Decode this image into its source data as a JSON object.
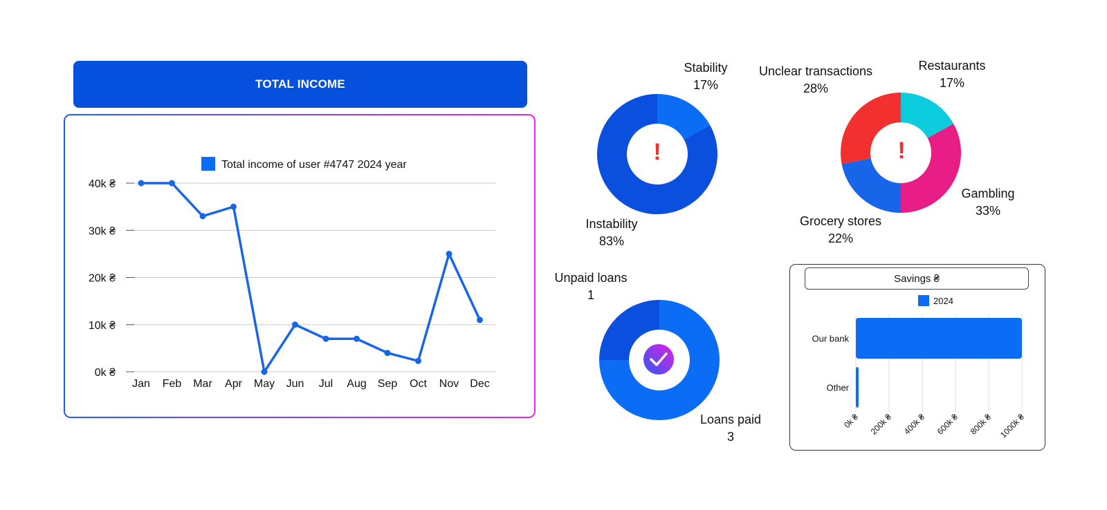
{
  "income": {
    "header": "TOTAL INCOME",
    "legend": "Total income of user #4747 2024 year"
  },
  "stability": {
    "stability_label": "Stability",
    "stability_pct": "17%",
    "instability_label": "Instability",
    "instability_pct": "83%",
    "center_icon": "!"
  },
  "spending": {
    "unclear_label": "Unclear transactions",
    "unclear_pct": "28%",
    "restaurants_label": "Restaurants",
    "restaurants_pct": "17%",
    "gambling_label": "Gambling",
    "gambling_pct": "33%",
    "grocery_label": "Grocery stores",
    "grocery_pct": "22%",
    "center_icon": "!"
  },
  "loans": {
    "unpaid_label": "Unpaid loans",
    "unpaid_value": "1",
    "paid_label": "Loans paid",
    "paid_value": "3"
  },
  "savings": {
    "title": "Savings ₴",
    "legend": "2024"
  },
  "colors": {
    "brand_blue": "#0550dc",
    "line_blue": "#1766ea",
    "bright_blue": "#0b6cf6",
    "dark_blue": "#0a4fde",
    "red": "#f2302f",
    "cyan": "#0ccbdc",
    "magenta": "#e81d86"
  },
  "chart_data": [
    {
      "type": "line",
      "categories": [
        "Jan",
        "Feb",
        "Mar",
        "Apr",
        "May",
        "Jun",
        "Jul",
        "Aug",
        "Sep",
        "Oct",
        "Nov",
        "Dec"
      ],
      "series": [
        {
          "name": "Total income of user #4747 2024 year",
          "values": [
            40,
            40,
            33,
            35,
            0,
            10,
            7,
            7,
            4,
            2.3,
            25,
            11
          ]
        }
      ],
      "y_ticks": [
        "0k ₴",
        "10k ₴",
        "20k ₴",
        "30k ₴",
        "40k ₴"
      ],
      "ylim": [
        0,
        40
      ],
      "grid": true,
      "legend_position": "top"
    },
    {
      "type": "pie",
      "labels": [
        "Stability",
        "Instability"
      ],
      "values": [
        17,
        83
      ],
      "colors": [
        "#0b6cf6",
        "#0a4fde"
      ]
    },
    {
      "type": "pie",
      "labels": [
        "Restaurants",
        "Gambling",
        "Grocery stores",
        "Unclear transactions"
      ],
      "values": [
        17,
        33,
        22,
        28
      ],
      "colors": [
        "#0ccbdc",
        "#e81d86",
        "#1766ea",
        "#f2302f"
      ]
    },
    {
      "type": "pie",
      "labels": [
        "Loans paid",
        "Unpaid loans"
      ],
      "values": [
        3,
        1
      ],
      "colors": [
        "#0b6cf6",
        "#0a4fde"
      ]
    },
    {
      "type": "bar",
      "orientation": "horizontal",
      "categories": [
        "Our bank",
        "Other"
      ],
      "series": [
        {
          "name": "2024",
          "values": [
            1000,
            5
          ]
        }
      ],
      "x_ticks": [
        "0k ₴",
        "200k ₴",
        "400k ₴",
        "600k ₴",
        "800k ₴",
        "1000k ₴"
      ],
      "xlim": [
        0,
        1000
      ],
      "legend_position": "top"
    }
  ]
}
